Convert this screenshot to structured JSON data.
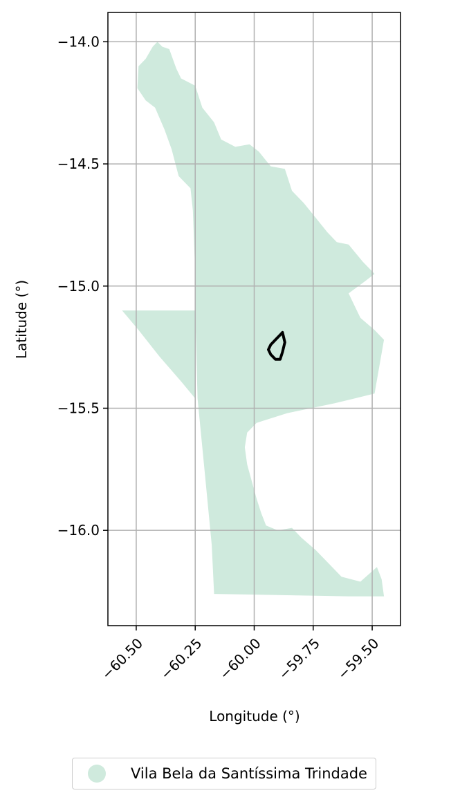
{
  "chart_data": {
    "type": "map",
    "xlabel": "Longitude (°)",
    "ylabel": "Latitude (°)",
    "xlim": [
      -60.62,
      -59.38
    ],
    "ylim": [
      -16.39,
      -13.88
    ],
    "xticks": [
      -60.5,
      -60.25,
      -60.0,
      -59.75,
      -59.5
    ],
    "xtick_labels": [
      "−60.50",
      "−60.25",
      "−60.00",
      "−59.75",
      "−59.50"
    ],
    "yticks": [
      -14.0,
      -14.5,
      -15.0,
      -15.5,
      -16.0
    ],
    "ytick_labels": [
      "−14.0",
      "−14.5",
      "−15.0",
      "−15.5",
      "−16.0"
    ],
    "grid": true,
    "legend_position": "bottom-center",
    "layers": [
      {
        "name": "Vila Bela da Santíssima Trindade",
        "color": "#cfeadd",
        "polygon": [
          [
            -60.495,
            -14.19
          ],
          [
            -60.49,
            -14.1
          ],
          [
            -60.46,
            -14.07
          ],
          [
            -60.43,
            -14.02
          ],
          [
            -60.41,
            -14.0
          ],
          [
            -60.39,
            -14.02
          ],
          [
            -60.36,
            -14.03
          ],
          [
            -60.33,
            -14.11
          ],
          [
            -60.31,
            -14.15
          ],
          [
            -60.25,
            -14.18
          ],
          [
            -60.22,
            -14.27
          ],
          [
            -60.17,
            -14.33
          ],
          [
            -60.14,
            -14.4
          ],
          [
            -60.08,
            -14.43
          ],
          [
            -60.02,
            -14.42
          ],
          [
            -59.98,
            -14.45
          ],
          [
            -59.93,
            -14.51
          ],
          [
            -59.87,
            -14.52
          ],
          [
            -59.84,
            -14.61
          ],
          [
            -59.79,
            -14.66
          ],
          [
            -59.74,
            -14.72
          ],
          [
            -59.69,
            -14.78
          ],
          [
            -59.65,
            -14.82
          ],
          [
            -59.6,
            -14.83
          ],
          [
            -59.54,
            -14.9
          ],
          [
            -59.49,
            -14.95
          ],
          [
            -59.53,
            -14.98
          ],
          [
            -59.6,
            -15.03
          ],
          [
            -59.55,
            -15.13
          ],
          [
            -59.49,
            -15.18
          ],
          [
            -59.45,
            -15.22
          ],
          [
            -59.49,
            -15.44
          ],
          [
            -59.66,
            -15.48
          ],
          [
            -59.86,
            -15.52
          ],
          [
            -59.99,
            -15.56
          ],
          [
            -60.03,
            -15.6
          ],
          [
            -60.04,
            -15.66
          ],
          [
            -60.03,
            -15.73
          ],
          [
            -60.01,
            -15.8
          ],
          [
            -59.99,
            -15.87
          ],
          [
            -59.97,
            -15.93
          ],
          [
            -59.95,
            -15.98
          ],
          [
            -59.9,
            -16.0
          ],
          [
            -59.84,
            -15.99
          ],
          [
            -59.8,
            -16.03
          ],
          [
            -59.74,
            -16.08
          ],
          [
            -59.69,
            -16.13
          ],
          [
            -59.63,
            -16.19
          ],
          [
            -59.55,
            -16.21
          ],
          [
            -59.48,
            -16.15
          ],
          [
            -59.46,
            -16.2
          ],
          [
            -59.45,
            -16.27
          ],
          [
            -59.6,
            -16.27
          ],
          [
            -60.17,
            -16.26
          ],
          [
            -60.18,
            -16.06
          ],
          [
            -60.21,
            -15.76
          ],
          [
            -60.24,
            -15.46
          ],
          [
            -60.25,
            -15.1
          ],
          [
            -60.56,
            -15.1
          ],
          [
            -60.49,
            -15.18
          ],
          [
            -60.4,
            -15.29
          ],
          [
            -60.31,
            -15.39
          ],
          [
            -60.25,
            -15.46
          ],
          [
            -60.25,
            -14.94
          ],
          [
            -60.26,
            -14.69
          ],
          [
            -60.27,
            -14.6
          ],
          [
            -60.32,
            -14.55
          ],
          [
            -60.35,
            -14.44
          ],
          [
            -60.38,
            -14.36
          ],
          [
            -60.42,
            -14.27
          ],
          [
            -60.46,
            -14.24
          ]
        ]
      },
      {
        "name": "",
        "color": "#000000",
        "outline": [
          [
            -59.88,
            -15.19
          ],
          [
            -59.87,
            -15.23
          ],
          [
            -59.88,
            -15.27
          ],
          [
            -59.89,
            -15.3
          ],
          [
            -59.91,
            -15.3
          ],
          [
            -59.93,
            -15.28
          ],
          [
            -59.94,
            -15.26
          ],
          [
            -59.93,
            -15.24
          ],
          [
            -59.91,
            -15.22
          ],
          [
            -59.89,
            -15.2
          ],
          [
            -59.88,
            -15.19
          ]
        ]
      }
    ]
  },
  "legend": {
    "label": "Vila Bela da Santíssima Trindade",
    "color": "#cfeadd"
  }
}
